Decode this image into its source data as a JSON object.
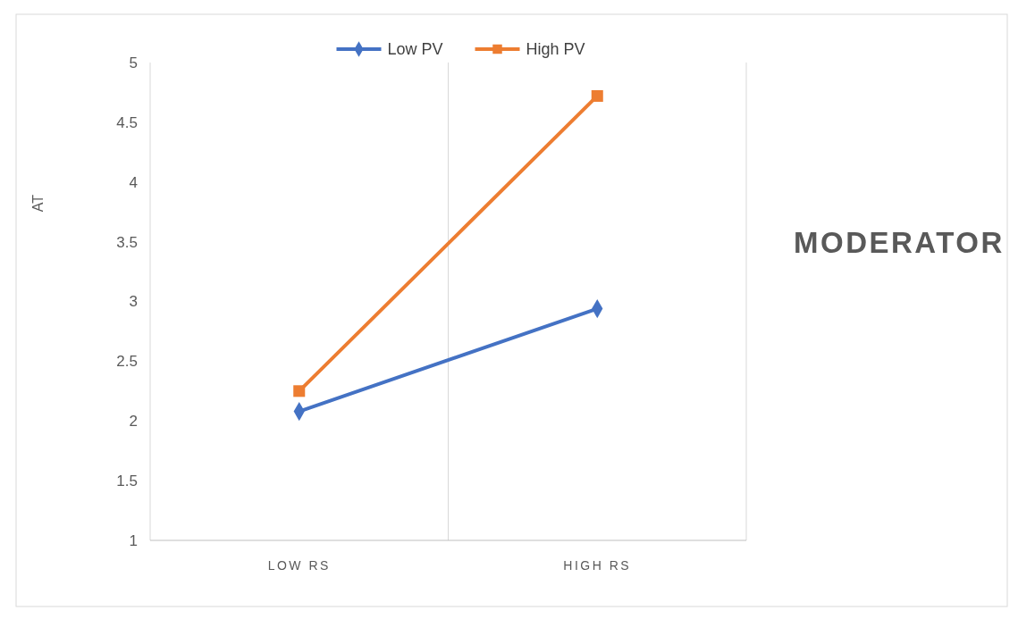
{
  "chart_data": {
    "type": "line",
    "categories": [
      "LOW RS",
      "HIGH RS"
    ],
    "ylabel": "AT",
    "ylim": [
      1,
      5
    ],
    "yticks": [
      1,
      1.5,
      2,
      2.5,
      3,
      3.5,
      4,
      4.5,
      5
    ],
    "grid": "x",
    "legend": "top",
    "line_style": "solid",
    "series": [
      {
        "name": "Low PV",
        "color": "#4472c4",
        "values": [
          2.08,
          2.94
        ],
        "marker": "diamond"
      },
      {
        "name": "High PV",
        "color": "#ed7d31",
        "values": [
          2.25,
          4.72
        ],
        "marker": "square"
      }
    ],
    "annotations": [
      "MODERATOR"
    ]
  }
}
